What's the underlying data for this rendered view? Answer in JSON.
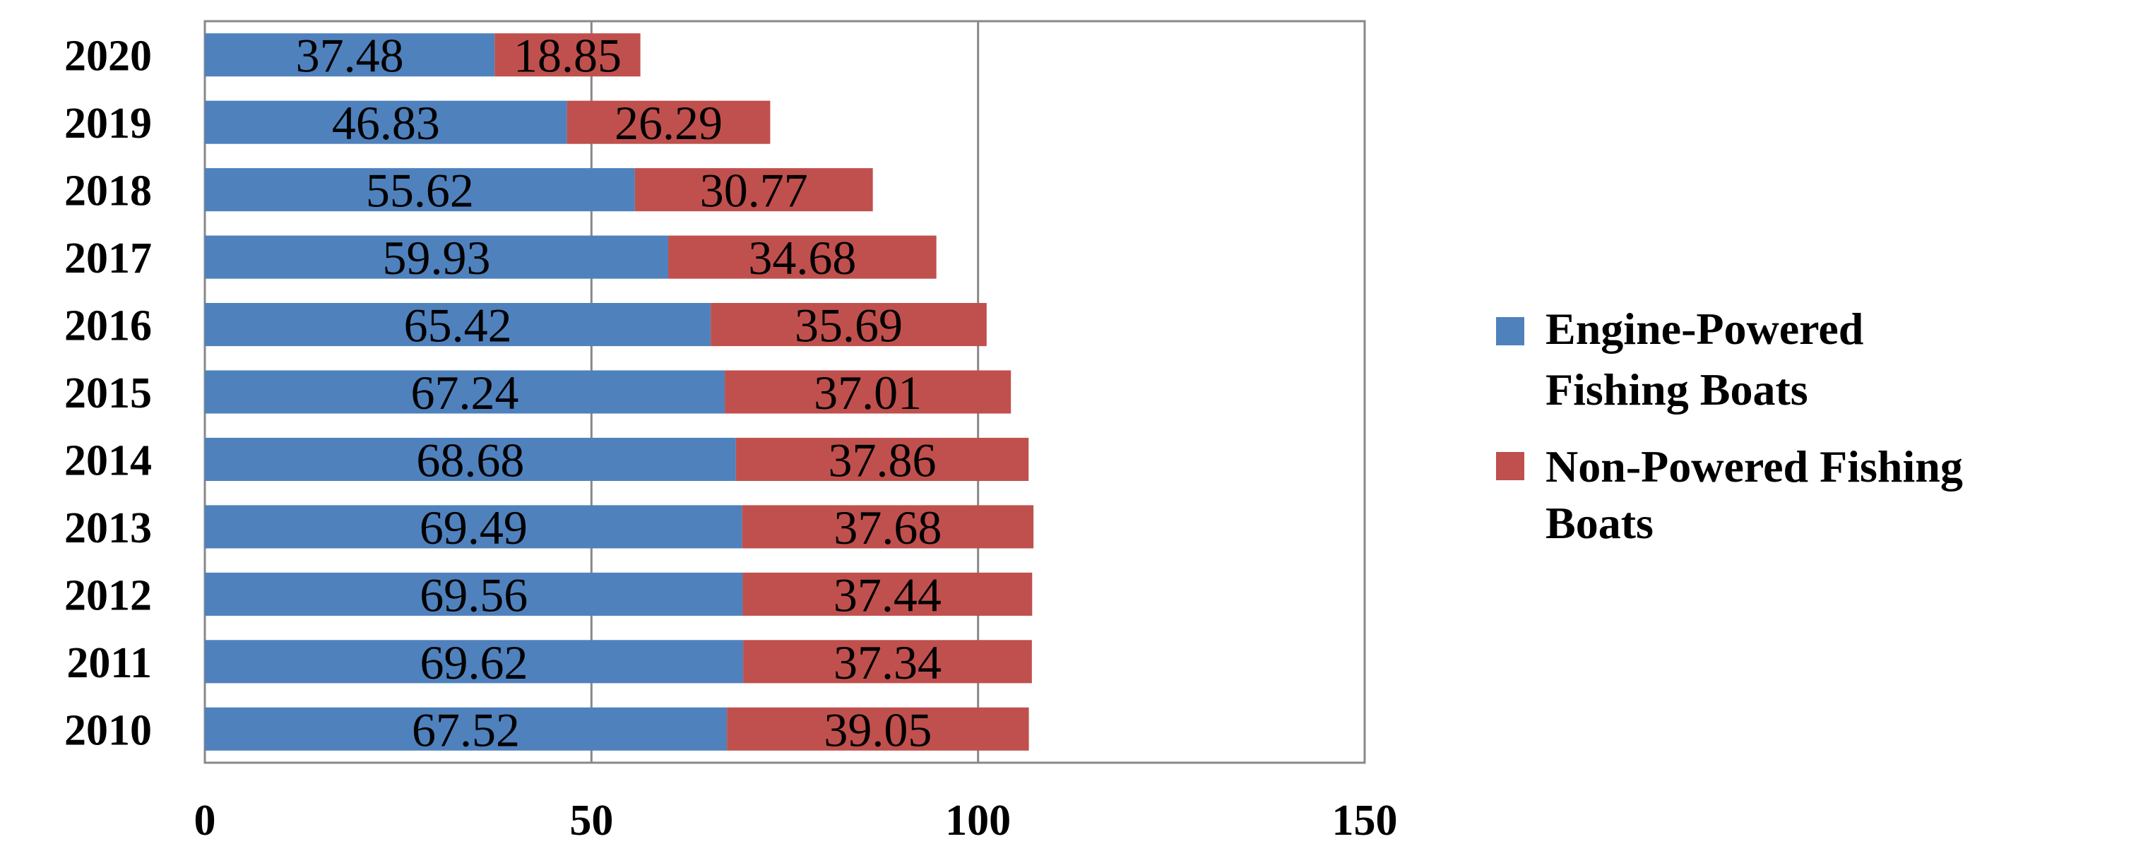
{
  "chart_data": {
    "type": "bar",
    "orientation": "horizontal",
    "stacked": true,
    "categories": [
      "2020",
      "2019",
      "2018",
      "2017",
      "2016",
      "2015",
      "2014",
      "2013",
      "2012",
      "2011",
      "2010"
    ],
    "series": [
      {
        "name": "Engine-Powered Fishing Boats",
        "values": [
          37.48,
          46.83,
          55.62,
          59.93,
          65.42,
          67.24,
          68.68,
          69.49,
          69.56,
          69.62,
          67.52
        ],
        "color": "#4f81bd"
      },
      {
        "name": "Non-Powered Fishing Boats",
        "values": [
          18.85,
          26.29,
          30.77,
          34.68,
          35.69,
          37.01,
          37.86,
          37.68,
          37.44,
          37.34,
          39.05
        ],
        "color": "#c0504d"
      }
    ],
    "data_labels": {
      "s0": [
        "37.48",
        "46.83",
        "55.62",
        "59.93",
        "65.42",
        "67.24",
        "68.68",
        "69.49",
        "69.56",
        "69.62",
        "67.52"
      ],
      "s1": [
        "18.85",
        "26.29",
        "30.77",
        "34.68",
        "35.69",
        "37.01",
        "37.86",
        "37.68",
        "37.44",
        "37.34",
        "39.05"
      ]
    },
    "xticks": [
      "0",
      "50",
      "100",
      "150"
    ],
    "xlim": [
      0,
      150
    ],
    "grid": "vertical",
    "legend": {
      "position": "right",
      "entries": [
        [
          "Engine-Powered",
          "Fishing Boats"
        ],
        [
          "Non-Powered Fishing",
          "Boats"
        ]
      ]
    },
    "title": "",
    "xlabel": "",
    "ylabel": ""
  }
}
